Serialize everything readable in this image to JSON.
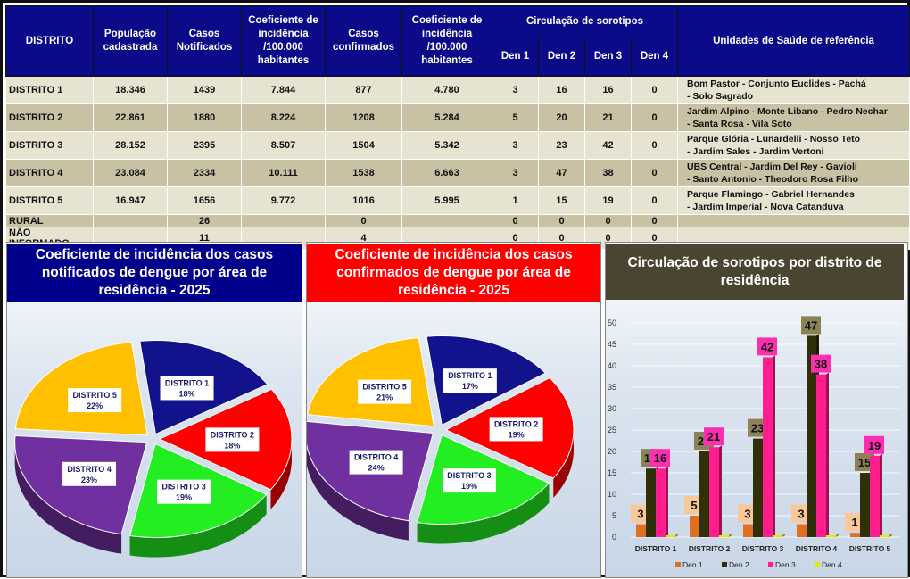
{
  "table": {
    "headers": {
      "distrito": "DISTRITO",
      "populacao": "População cadastrada",
      "notificados": "Casos Notificados",
      "coef1": "Coeficiente de incidência /100.000 habitantes",
      "confirmados": "Casos confirmados",
      "coef2": "Coeficiente de incidência /100.000 habitantes",
      "circulacao": "Circulação de sorotipos",
      "den1": "Den 1",
      "den2": "Den 2",
      "den3": "Den 3",
      "den4": "Den 4",
      "unidades": "Unidades de Saúde de referência"
    },
    "rows": [
      {
        "distrito": "DISTRITO 1",
        "pop": "18.346",
        "notif": "1439",
        "coef1": "7.844",
        "conf": "877",
        "coef2": "4.780",
        "d1": "3",
        "d2": "16",
        "d3": "16",
        "d4": "0",
        "u1": "Bom Pastor - Conjunto Euclides - Pachá",
        "u2": "- Solo Sagrado"
      },
      {
        "distrito": "DISTRITO 2",
        "pop": "22.861",
        "notif": "1880",
        "coef1": "8.224",
        "conf": "1208",
        "coef2": "5.284",
        "d1": "5",
        "d2": "20",
        "d3": "21",
        "d4": "0",
        "u1": "Jardim Alpino - Monte Libano - Pedro Nechar",
        "u2": "- Santa Rosa - Vila Soto"
      },
      {
        "distrito": "DISTRITO 3",
        "pop": "28.152",
        "notif": "2395",
        "coef1": "8.507",
        "conf": "1504",
        "coef2": "5.342",
        "d1": "3",
        "d2": "23",
        "d3": "42",
        "d4": "0",
        "u1": "Parque Glória - Lunardelli - Nosso Teto",
        "u2": "- Jardim Sales - Jardim Vertoni"
      },
      {
        "distrito": "DISTRITO 4",
        "pop": "23.084",
        "notif": "2334",
        "coef1": "10.111",
        "conf": "1538",
        "coef2": "6.663",
        "d1": "3",
        "d2": "47",
        "d3": "38",
        "d4": "0",
        "u1": "UBS Central - Jardim Del Rey - Gavioli",
        "u2": "- Santo Antonio - Theodoro Rosa Filho"
      },
      {
        "distrito": "DISTRITO 5",
        "pop": "16.947",
        "notif": "1656",
        "coef1": "9.772",
        "conf": "1016",
        "coef2": "5.995",
        "d1": "1",
        "d2": "15",
        "d3": "19",
        "d4": "0",
        "u1": "Parque Flamingo - Gabriel Hernandes",
        "u2": "- Jardim Imperial - Nova Catanduva"
      },
      {
        "distrito": "RURAL",
        "pop": "",
        "notif": "26",
        "coef1": "",
        "conf": "0",
        "coef2": "",
        "d1": "0",
        "d2": "0",
        "d3": "0",
        "d4": "0",
        "u1": "",
        "u2": ""
      },
      {
        "distrito": "NÃO INFORMADO",
        "pop": "",
        "notif": "11",
        "coef1": "",
        "conf": "4",
        "coef2": "",
        "d1": "0",
        "d2": "0",
        "d3": "0",
        "d4": "0",
        "u1": "",
        "u2": ""
      }
    ]
  },
  "chart_data": [
    {
      "type": "pie",
      "title": "Coeficiente de incidência dos casos notificados de dengue por área de residência - 2025",
      "title_bg": "#00008b",
      "categories": [
        "DISTRITO 1",
        "DISTRITO 2",
        "DISTRITO 3",
        "DISTRITO 4",
        "DISTRITO 5"
      ],
      "values": [
        18,
        18,
        19,
        23,
        22
      ],
      "labels": [
        "18%",
        "18%",
        "19%",
        "23%",
        "22%"
      ],
      "colors": [
        "#12128c",
        "#ff0000",
        "#22ee22",
        "#7030a0",
        "#ffc000"
      ]
    },
    {
      "type": "pie",
      "title": "Coeficiente de incidência dos casos confirmados de dengue por área de residência - 2025",
      "title_bg": "#ff0000",
      "categories": [
        "DISTRITO 1",
        "DISTRITO 2",
        "DISTRITO 3",
        "DISTRITO 4",
        "DISTRITO 5"
      ],
      "values": [
        17,
        19,
        19,
        24,
        21
      ],
      "labels": [
        "17%",
        "19%",
        "19%",
        "24%",
        "21%"
      ],
      "colors": [
        "#12128c",
        "#ff0000",
        "#22ee22",
        "#7030a0",
        "#ffc000"
      ]
    },
    {
      "type": "bar",
      "title": "Circulação de sorotipos por distrito de residência",
      "title_bg": "#4a4530",
      "categories": [
        "DISTRITO 1",
        "DISTRITO 2",
        "DISTRITO 3",
        "DISTRITO 4",
        "DISTRITO 5"
      ],
      "series": [
        {
          "name": "Den 1",
          "values": [
            3,
            5,
            3,
            3,
            1
          ],
          "color": "#e07020"
        },
        {
          "name": "Den 2",
          "values": [
            16,
            20,
            23,
            47,
            15
          ],
          "color": "#2f2f08"
        },
        {
          "name": "Den 3",
          "values": [
            16,
            21,
            42,
            38,
            19
          ],
          "color": "#ff1e8c"
        },
        {
          "name": "Den 4",
          "values": [
            0,
            0,
            0,
            0,
            0
          ],
          "color": "#e8e800"
        }
      ],
      "ylim": [
        0,
        50
      ],
      "yticks": [
        "0",
        "5",
        "10",
        "15",
        "20",
        "25",
        "30",
        "35",
        "40",
        "45",
        "50"
      ],
      "legend": "bottom",
      "grid": true
    }
  ]
}
